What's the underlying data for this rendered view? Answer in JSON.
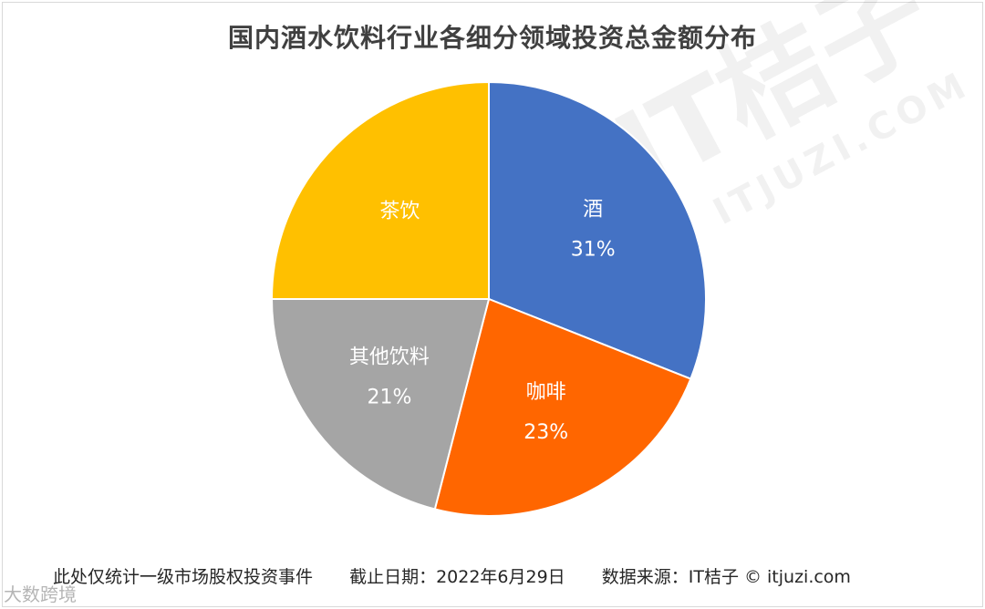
{
  "title": "国内酒水饮料行业各细分领域投资总金额分布",
  "watermark": {
    "main": "IT桔子",
    "sub": "ITJUZI.COM"
  },
  "footer": {
    "note": "此处仅统计一级市场股权投资事件",
    "date": "截止日期：2022年6月29日",
    "source": "数据来源：IT桔子 © itjuzi.com"
  },
  "brand_watermark": "大数跨境",
  "chart_data": {
    "type": "pie",
    "title": "国内酒水饮料行业各细分领域投资总金额分布",
    "categories": [
      "酒",
      "咖啡",
      "其他饮料",
      "茶饮"
    ],
    "values": [
      31,
      23,
      21,
      25
    ],
    "labels": [
      "31%",
      "23%",
      "21%",
      ""
    ],
    "colors": [
      "#4472c4",
      "#ff6600",
      "#a5a5a5",
      "#ffc000"
    ],
    "start": "12 o'clock",
    "direction": "clockwise"
  }
}
